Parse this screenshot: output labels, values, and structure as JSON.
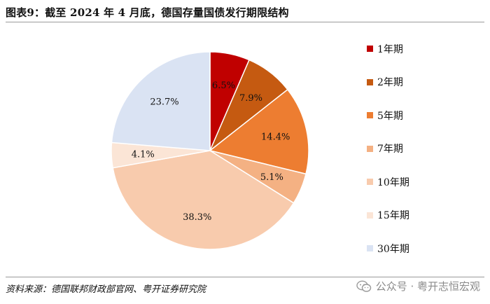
{
  "title": "图表9：截至 2024 年 4 月底，德国存量国债发行期限结构",
  "source": "资料来源：德国联邦财政部官网、粤开证券研究院",
  "watermark": "公众号 · 粤开志恒宏观",
  "watermark_icon": "wechat-icon",
  "chart_data": {
    "type": "pie",
    "title": "图表9：截至 2024 年 4 月底，德国存量国债发行期限结构",
    "start_angle": "12 o'clock",
    "direction": "clockwise",
    "legend_position": "right",
    "slices": [
      {
        "label": "1年期",
        "value": 6.5,
        "display": "6.5%",
        "color": "#C00000"
      },
      {
        "label": "2年期",
        "value": 7.9,
        "display": "7.9%",
        "color": "#C55A11"
      },
      {
        "label": "5年期",
        "value": 14.4,
        "display": "14.4%",
        "color": "#ED7D31"
      },
      {
        "label": "7年期",
        "value": 5.1,
        "display": "5.1%",
        "color": "#F4B183"
      },
      {
        "label": "10年期",
        "value": 38.3,
        "display": "38.3%",
        "color": "#F8CBAD"
      },
      {
        "label": "15年期",
        "value": 4.1,
        "display": "4.1%",
        "color": "#FBE5D6"
      },
      {
        "label": "30年期",
        "value": 23.7,
        "display": "23.7%",
        "color": "#DAE3F3"
      }
    ]
  }
}
